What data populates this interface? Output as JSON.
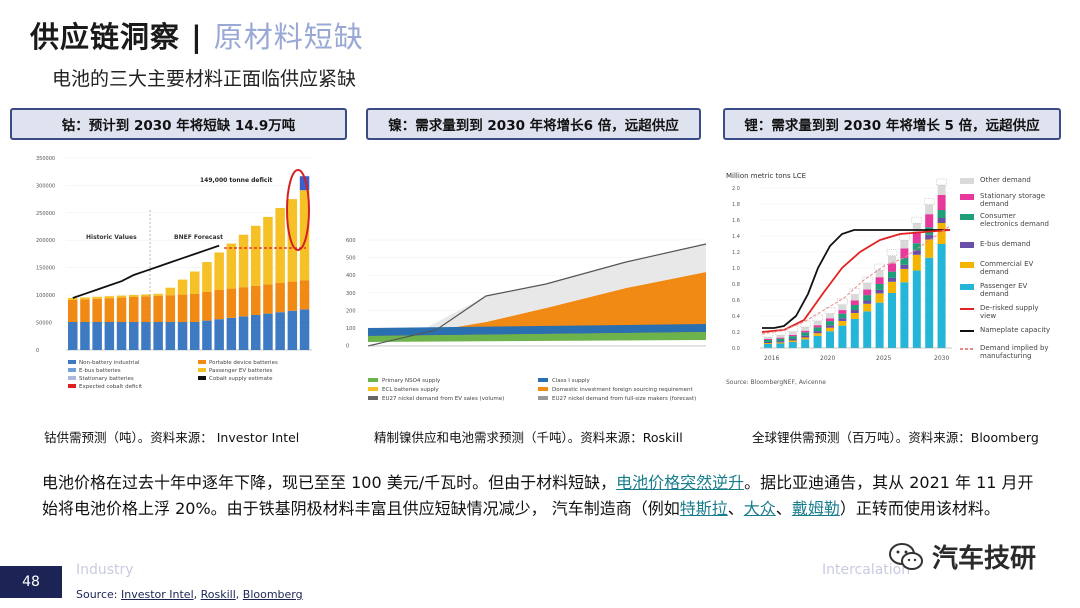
{
  "title": {
    "main": "供应链洞察 | ",
    "accent": "原材料短缺"
  },
  "subtitle": "电池的三大主要材料正面临供应紧缺",
  "panels": [
    {
      "header": "钴：预计到 2030 年将短缺 14.9万吨",
      "caption": "钴供需预测（吨）。资料来源： Investor Intel"
    },
    {
      "header": "镍：需求量到到 2030 年将增长6 倍，远超供应",
      "caption": "精制镍供应和电池需求预测（千吨）。资料来源：Roskill"
    },
    {
      "header": "锂：需求量到到 2030 年将增长 5 倍，远超供应",
      "caption": "全球锂供需预测（百万吨）。资料来源：Bloomberg"
    }
  ],
  "body": {
    "p1": "电池价格在过去十年中逐年下降，现已至至 100 美元/千瓦时。但由于材料短缺，",
    "link1": "电池价格突然逆升",
    "p2": "。据比亚迪通告，其从 2021 年 11 月开始将电池价格上浮 20%。由于铁基阴极材料丰富且供应短缺情况减少， 汽车制造商（例如",
    "link2": "特斯拉",
    "sep1": "、",
    "link3": "大众",
    "sep2": "、",
    "link4": "戴姆勒",
    "p3": "）正转而使用该材料。"
  },
  "footer": {
    "page": "48",
    "industry": "Industry",
    "right": "Intercalation",
    "source_label": "Source: ",
    "sources": [
      "Investor Intel",
      "Roskill",
      "Bloomberg"
    ],
    "source_sep": ", "
  },
  "watermark": "汽车技研",
  "chart_cobalt": {
    "annotations": {
      "historic": "Historic Values",
      "forecast": "BNEF Forecast",
      "deficit": "149,000 tonne deficit"
    },
    "yticks": [
      "350000",
      "300000",
      "250000",
      "200000",
      "150000",
      "100000",
      "50000",
      "0"
    ],
    "legend": [
      "Non-battery industrial",
      "Portable device batteries",
      "E-bus batteries",
      "Passenger EV batteries",
      "Stationary batteries",
      "Cobalt supply estimate",
      "Expected cobalt deficit"
    ]
  },
  "chart_nickel": {
    "yticks": [
      "600",
      "500",
      "400",
      "300",
      "200",
      "100",
      "0"
    ],
    "legend": [
      "Primary NSO4 supply",
      "Class I supply",
      "ECL batteries supply",
      "Domestic investment foreign sourcing requirement",
      "EU27 nickel demand from EV sales (volume)",
      "EU27 nickel demand from full-size makers (forecast)"
    ]
  },
  "chart_lithium": {
    "ylabel": "Million metric tons LCE",
    "yticks": [
      "2.0",
      "1.8",
      "1.6",
      "1.4",
      "1.2",
      "1.0",
      "0.8",
      "0.6",
      "0.4",
      "0.2",
      "0.0"
    ],
    "xticks": [
      "2016",
      "2020",
      "2025",
      "2030"
    ],
    "legend": [
      "Other demand",
      "Stationary storage demand",
      "Consumer electronics demand",
      "E-bus demand",
      "Commercial EV demand",
      "Passenger EV demand",
      "De-risked supply view",
      "Nameplate capacity",
      "Demand implied by manufacturing"
    ],
    "source": "Source: BloombergNEF, Avicenne",
    "colors": {
      "other": "#d9d9d9",
      "stationary": "#e6399b",
      "consumer": "#1f9e7a",
      "ebus": "#6a4fa8",
      "commercial": "#f4b400",
      "passenger": "#25b5d8",
      "derisked": "#e32222",
      "nameplate": "#111111"
    }
  }
}
